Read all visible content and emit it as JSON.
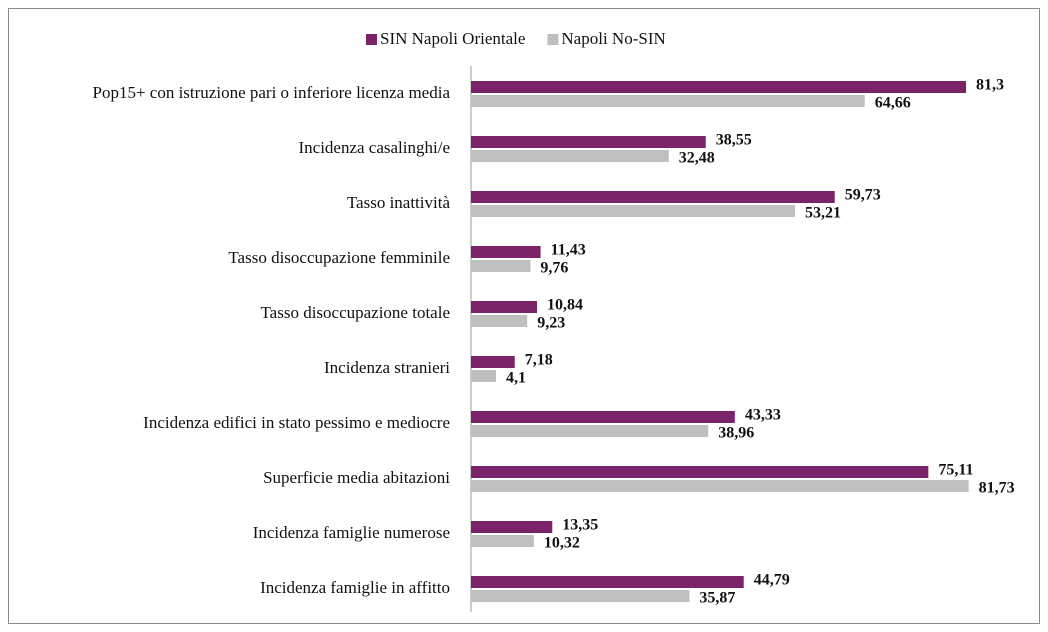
{
  "chart_data": {
    "type": "hbar",
    "categories": [
      "Pop15+ con istruzione pari o inferiore licenza media",
      "Incidenza casalinghi/e",
      "Tasso inattività",
      "Tasso disoccupazione femminile",
      "Tasso disoccupazione totale",
      "Incidenza stranieri",
      "Incidenza edifici in stato pessimo e mediocre",
      "Superficie media abitazioni",
      "Incidenza famiglie numerose",
      "Incidenza famiglie in affitto"
    ],
    "series": [
      {
        "name": "SIN Napoli Orientale",
        "color": "#7b2368",
        "values": [
          81.3,
          38.55,
          59.73,
          11.43,
          10.84,
          7.18,
          43.33,
          75.11,
          13.35,
          44.79
        ],
        "value_labels": [
          "81,3",
          "38,55",
          "59,73",
          "11,43",
          "10,84",
          "7,18",
          "43,33",
          "75,11",
          "13,35",
          "44,79"
        ]
      },
      {
        "name": "Napoli No-SIN",
        "color": "#bfbfbf",
        "values": [
          64.66,
          32.48,
          53.21,
          9.76,
          9.23,
          4.1,
          38.96,
          81.73,
          10.32,
          35.87
        ],
        "value_labels": [
          "64,66",
          "32,48",
          "53,21",
          "9,76",
          "9,23",
          "4,1",
          "38,96",
          "81,73",
          "10,32",
          "35,87"
        ]
      }
    ],
    "xlim": [
      0,
      90
    ],
    "legend": "top"
  }
}
